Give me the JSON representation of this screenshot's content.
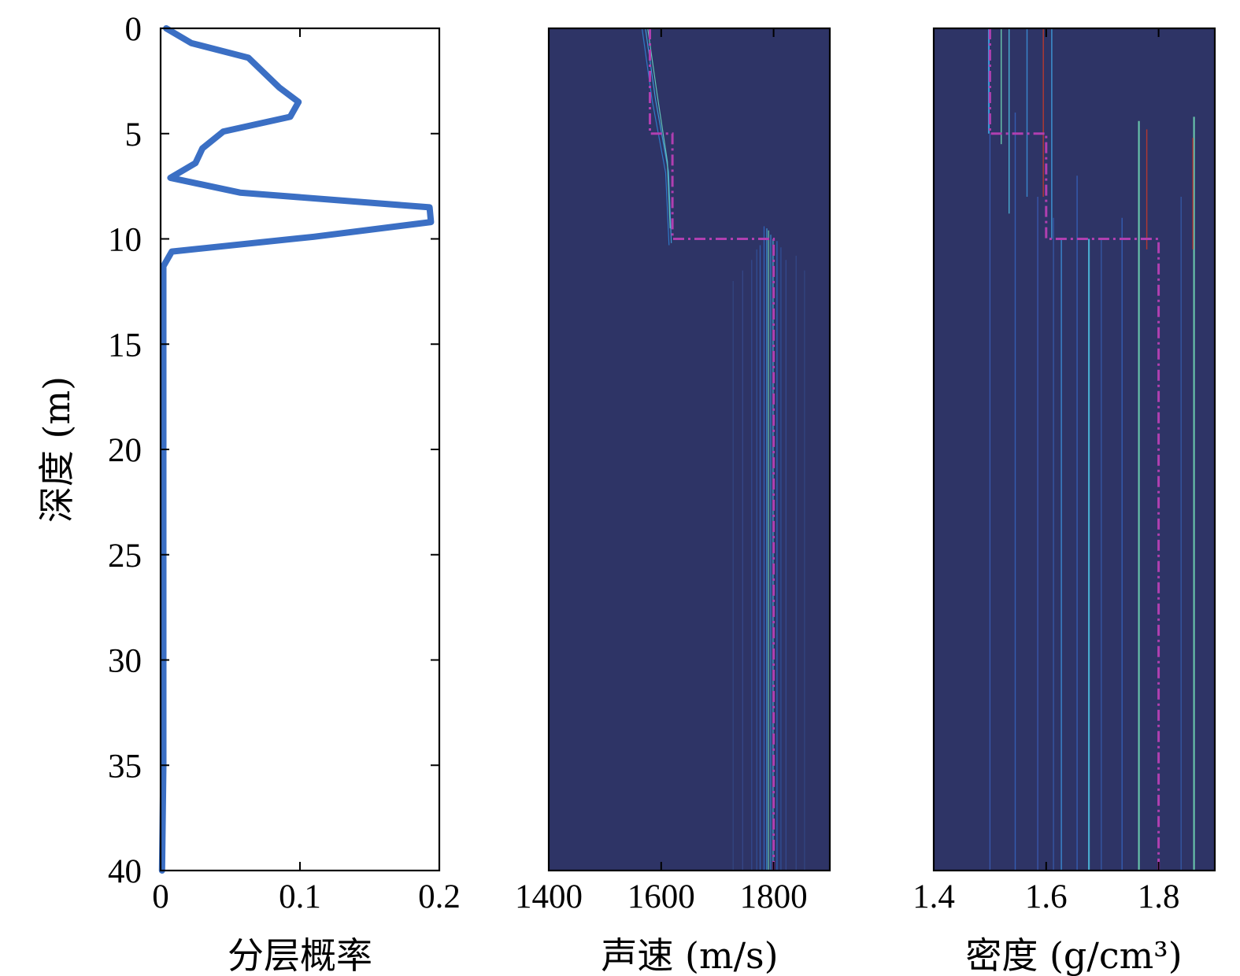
{
  "chart_data": [
    {
      "type": "line",
      "xlabel": "分层概率",
      "ylabel": "深度 (m)",
      "xlim": [
        0,
        0.2
      ],
      "ylim": [
        0,
        40
      ],
      "y_reversed": true,
      "xticks": [
        "0",
        "0.1",
        "0.2"
      ],
      "yticks": [
        "0",
        "5",
        "10",
        "15",
        "20",
        "25",
        "30",
        "35",
        "40"
      ],
      "series": [
        {
          "color": "#3b6fc4",
          "x": [
            0.004,
            0.022,
            0.063,
            0.085,
            0.099,
            0.093,
            0.045,
            0.03,
            0.025,
            0.007,
            0.057,
            0.193,
            0.194,
            0.11,
            0.008,
            0.002,
            0.002,
            0.002,
            0.002,
            0.001
          ],
          "y": [
            0,
            0.7,
            1.4,
            2.8,
            3.5,
            4.2,
            4.9,
            5.7,
            6.4,
            7.1,
            7.8,
            8.5,
            9.2,
            9.9,
            10.6,
            11.3,
            15,
            25,
            35,
            40
          ]
        }
      ]
    },
    {
      "type": "heatmap",
      "xlabel": "声速 (m/s)",
      "xlim": [
        1400,
        1900
      ],
      "ylim": [
        0,
        40
      ],
      "y_reversed": true,
      "xticks": [
        "1400",
        "1600",
        "1800"
      ],
      "background_color": "#2e3466",
      "true_profile": {
        "color": "#b03fb0",
        "style": "dash-dot",
        "x": [
          1580,
          1580,
          1620,
          1620,
          1800,
          1800
        ],
        "y": [
          0,
          5,
          5,
          10,
          10,
          40
        ]
      },
      "streaks": [
        {
          "x": [
            1566,
            1584,
            1608,
            1614
          ],
          "y0": 0,
          "y1": 10.3,
          "width": 1.0,
          "color": "#2f7fd0"
        },
        {
          "x": [
            1572,
            1590,
            1613,
            1618
          ],
          "y0": 0,
          "y1": 10.2,
          "width": 0.8,
          "color": "#3fa0e0"
        },
        {
          "x": [
            1576,
            1593,
            1611,
            1616
          ],
          "y0": 0,
          "y1": 9.5,
          "width": 0.6,
          "color": "#66cfc0"
        },
        {
          "x": [
            1783,
            1783
          ],
          "y0": 9.4,
          "y1": 40,
          "width": 1.2,
          "color": "#2f6ac9"
        },
        {
          "x": [
            1788,
            1788
          ],
          "y0": 9.5,
          "y1": 40,
          "width": 1.0,
          "color": "#3fa0e0"
        },
        {
          "x": [
            1791,
            1791
          ],
          "y0": 9.6,
          "y1": 40,
          "width": 0.6,
          "color": "#6fd4b4"
        },
        {
          "x": [
            1795,
            1795
          ],
          "y0": 9.8,
          "y1": 40,
          "width": 1.0,
          "color": "#3b8fd8"
        },
        {
          "x": [
            1799,
            1799
          ],
          "y0": 10,
          "y1": 40,
          "width": 0.5,
          "color": "#4cb8dc"
        },
        {
          "x": [
            1806,
            1806
          ],
          "y0": 10.1,
          "y1": 40,
          "width": 1.0,
          "color": "#2f6ac9"
        },
        {
          "x": [
            1776,
            1776
          ],
          "y0": 10.3,
          "y1": 40,
          "width": 0.7,
          "color": "#3560b8"
        },
        {
          "x": [
            1770,
            1770
          ],
          "y0": 10.5,
          "y1": 40,
          "width": 0.6,
          "color": "#31539f"
        },
        {
          "x": [
            1813,
            1813
          ],
          "y0": 10.4,
          "y1": 40,
          "width": 0.6,
          "color": "#31539f"
        },
        {
          "x": [
            1761,
            1761
          ],
          "y0": 11,
          "y1": 40,
          "width": 0.5,
          "color": "#344e96"
        },
        {
          "x": [
            1822,
            1822
          ],
          "y0": 11,
          "y1": 40,
          "width": 0.6,
          "color": "#344e96"
        },
        {
          "x": [
            1745,
            1745
          ],
          "y0": 11.5,
          "y1": 40,
          "width": 0.5,
          "color": "#354b8e"
        },
        {
          "x": [
            1840,
            1840
          ],
          "y0": 10.8,
          "y1": 40,
          "width": 0.5,
          "color": "#354b8e"
        },
        {
          "x": [
            1728,
            1728
          ],
          "y0": 12,
          "y1": 40,
          "width": 0.5,
          "color": "#334886"
        },
        {
          "x": [
            1855,
            1855
          ],
          "y0": 11.5,
          "y1": 40,
          "width": 0.4,
          "color": "#334886"
        }
      ]
    },
    {
      "type": "heatmap",
      "xlabel": "密度 (g/cm³)",
      "xlim": [
        1.4,
        1.9
      ],
      "ylim": [
        0,
        40
      ],
      "y_reversed": true,
      "xticks": [
        "1.4",
        "1.6",
        "1.8"
      ],
      "background_color": "#2e3466",
      "true_profile": {
        "color": "#b03fb0",
        "style": "dash-dot",
        "x": [
          1.5,
          1.5,
          1.6,
          1.6,
          1.8,
          1.8
        ],
        "y": [
          0,
          5,
          5,
          10,
          10,
          40
        ]
      },
      "streaks": [
        {
          "x": [
            1.498,
            1.498
          ],
          "y0": 0,
          "y1": 5,
          "width": 0.003,
          "color": "#3fa0e0"
        },
        {
          "x": [
            1.52,
            1.52
          ],
          "y0": 0,
          "y1": 5.5,
          "width": 0.002,
          "color": "#6fd4b4"
        },
        {
          "x": [
            1.534,
            1.534
          ],
          "y0": 0,
          "y1": 8.8,
          "width": 0.002,
          "color": "#4cb8dc"
        },
        {
          "x": [
            1.566,
            1.566
          ],
          "y0": 0,
          "y1": 8,
          "width": 0.002,
          "color": "#3b8fd8"
        },
        {
          "x": [
            1.595,
            1.595
          ],
          "y0": 0,
          "y1": 8,
          "width": 0.002,
          "color": "#c0392b"
        },
        {
          "x": [
            1.61,
            1.61
          ],
          "y0": 0,
          "y1": 10,
          "width": 0.002,
          "color": "#3fa0e0"
        },
        {
          "x": [
            1.5,
            1.5
          ],
          "y0": 5,
          "y1": 40,
          "width": 0.002,
          "color": "#3a5ab0"
        },
        {
          "x": [
            1.545,
            1.545
          ],
          "y0": 4,
          "y1": 40,
          "width": 0.002,
          "color": "#3560b8"
        },
        {
          "x": [
            1.585,
            1.585
          ],
          "y0": 8,
          "y1": 40,
          "width": 0.002,
          "color": "#3a5ab0"
        },
        {
          "x": [
            1.613,
            1.613
          ],
          "y0": 9,
          "y1": 40,
          "width": 0.002,
          "color": "#355aa8"
        },
        {
          "x": [
            1.627,
            1.627
          ],
          "y0": 10,
          "y1": 40,
          "width": 0.002,
          "color": "#3b8fd8"
        },
        {
          "x": [
            1.655,
            1.655
          ],
          "y0": 7,
          "y1": 40,
          "width": 0.002,
          "color": "#3560b8"
        },
        {
          "x": [
            1.676,
            1.676
          ],
          "y0": 10,
          "y1": 40,
          "width": 0.003,
          "color": "#4cb8dc"
        },
        {
          "x": [
            1.698,
            1.698
          ],
          "y0": 10,
          "y1": 40,
          "width": 0.002,
          "color": "#355aa8"
        },
        {
          "x": [
            1.735,
            1.735
          ],
          "y0": 9,
          "y1": 40,
          "width": 0.002,
          "color": "#3560b8"
        },
        {
          "x": [
            1.765,
            1.765
          ],
          "y0": 4.4,
          "y1": 40,
          "width": 0.003,
          "color": "#6fd4b4"
        },
        {
          "x": [
            1.779,
            1.779
          ],
          "y0": 4.8,
          "y1": 10.5,
          "width": 0.002,
          "color": "#c0392b"
        },
        {
          "x": [
            1.84,
            1.84
          ],
          "y0": 8,
          "y1": 40,
          "width": 0.002,
          "color": "#355aa8"
        },
        {
          "x": [
            1.863,
            1.863
          ],
          "y0": 4.2,
          "y1": 40,
          "width": 0.003,
          "color": "#6fd4b4"
        },
        {
          "x": [
            1.861,
            1.861
          ],
          "y0": 5.2,
          "y1": 10.5,
          "width": 0.002,
          "color": "#c0392b"
        }
      ]
    }
  ]
}
